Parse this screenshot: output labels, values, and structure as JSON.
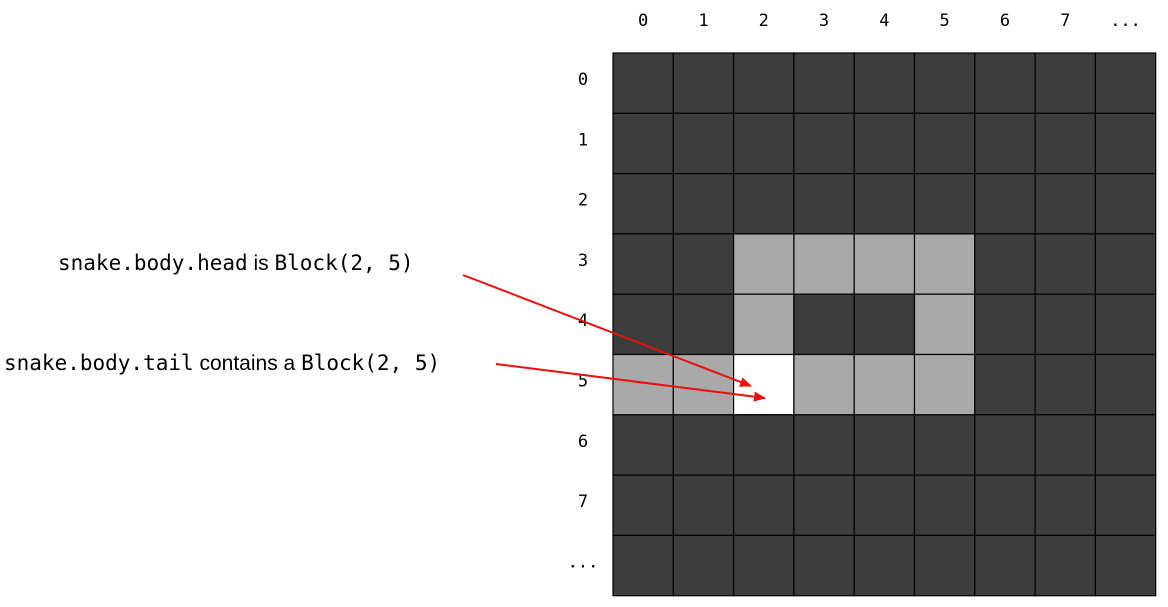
{
  "grid": {
    "col_labels": [
      "0",
      "1",
      "2",
      "3",
      "4",
      "5",
      "6",
      "7",
      "..."
    ],
    "row_labels": [
      "0",
      "1",
      "2",
      "3",
      "4",
      "5",
      "6",
      "7",
      "..."
    ],
    "cells": [
      [
        "empty",
        "empty",
        "empty",
        "empty",
        "empty",
        "empty",
        "empty",
        "empty",
        "empty"
      ],
      [
        "empty",
        "empty",
        "empty",
        "empty",
        "empty",
        "empty",
        "empty",
        "empty",
        "empty"
      ],
      [
        "empty",
        "empty",
        "empty",
        "empty",
        "empty",
        "empty",
        "empty",
        "empty",
        "empty"
      ],
      [
        "empty",
        "empty",
        "body",
        "body",
        "body",
        "body",
        "empty",
        "empty",
        "empty"
      ],
      [
        "empty",
        "empty",
        "body",
        "empty",
        "empty",
        "body",
        "empty",
        "empty",
        "empty"
      ],
      [
        "body",
        "body",
        "head",
        "body",
        "body",
        "body",
        "empty",
        "empty",
        "empty"
      ],
      [
        "empty",
        "empty",
        "empty",
        "empty",
        "empty",
        "empty",
        "empty",
        "empty",
        "empty"
      ],
      [
        "empty",
        "empty",
        "empty",
        "empty",
        "empty",
        "empty",
        "empty",
        "empty",
        "empty"
      ],
      [
        "empty",
        "empty",
        "empty",
        "empty",
        "empty",
        "empty",
        "empty",
        "empty",
        "empty"
      ]
    ],
    "colors": {
      "empty": "#3d3d3d",
      "body": "#a9a9a9",
      "head": "#ffffff",
      "arrow": "#e8100f"
    }
  },
  "annotations": [
    {
      "parts": [
        {
          "text": "snake.body.head",
          "style": "code"
        },
        {
          "text": " is ",
          "style": "prose"
        },
        {
          "text": "Block(2, 5)",
          "style": "code"
        }
      ],
      "target_cell": [
        2,
        5
      ]
    },
    {
      "parts": [
        {
          "text": "snake.body.tail",
          "style": "code"
        },
        {
          "text": " contains a ",
          "style": "prose"
        },
        {
          "text": "Block(2, 5)",
          "style": "code"
        }
      ],
      "target_cell": [
        2,
        5
      ]
    }
  ]
}
